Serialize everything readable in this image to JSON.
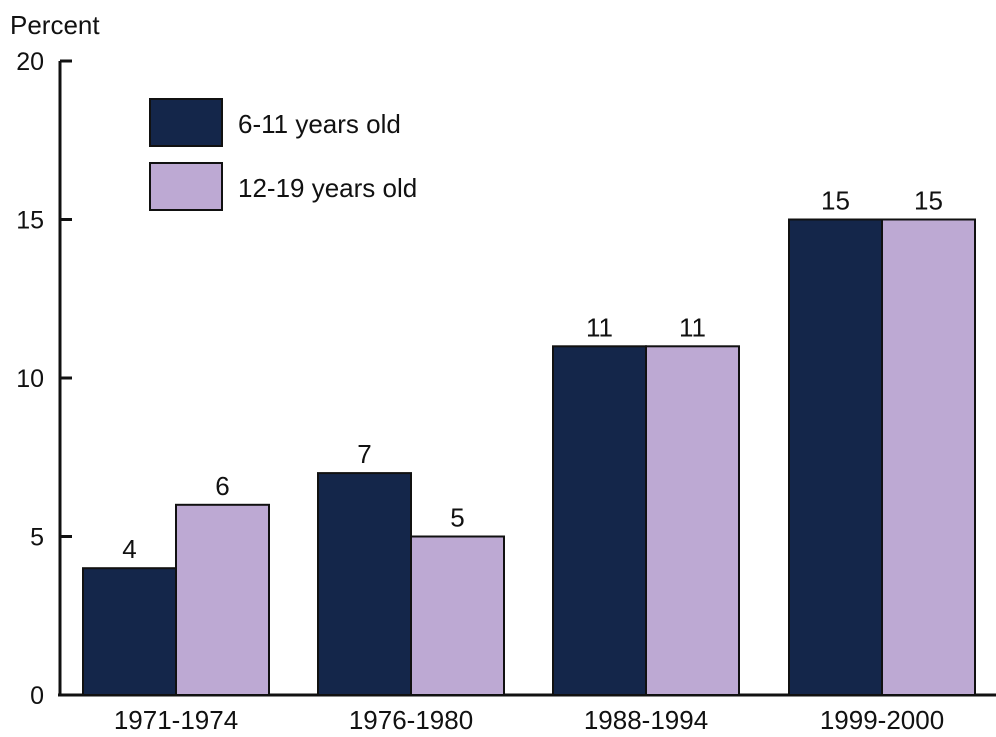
{
  "chart_data": {
    "type": "bar",
    "ylabel": "Percent",
    "ylim": [
      0,
      20
    ],
    "yticks": [
      "0",
      "5",
      "10",
      "15",
      "20"
    ],
    "grid": false,
    "legend_position": "top-left",
    "categories": [
      "1971-1974",
      "1976-1980",
      "1988-1994",
      "1999-2000"
    ],
    "series": [
      {
        "name": "6-11 years old",
        "color": "#14264a",
        "values": [
          4,
          7,
          11,
          15
        ],
        "labels": [
          "4",
          "7",
          "11",
          "15"
        ]
      },
      {
        "name": "12-19 years old",
        "color": "#bda9d3",
        "values": [
          6,
          5,
          11,
          15
        ],
        "labels": [
          "6",
          "5",
          "11",
          "15"
        ]
      }
    ]
  }
}
